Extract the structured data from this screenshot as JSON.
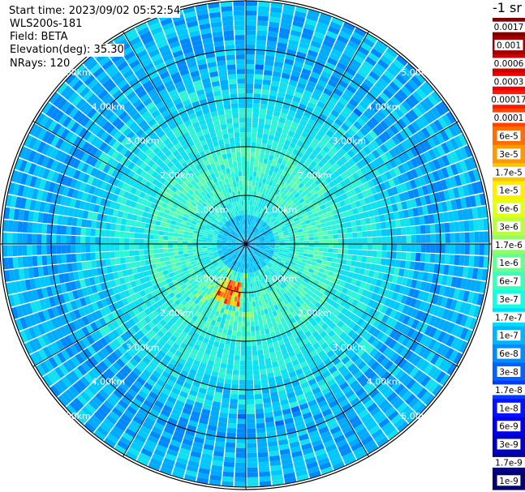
{
  "info": {
    "start_time": "Start time: 2023/09/02 05:52:54",
    "instrument": "WLS200s-181",
    "field": "Field: BETA",
    "elevation": "Elevation(deg): 35.30",
    "nrays": "NRays: 120"
  },
  "colorbar": {
    "unit_label": "-1 sr",
    "ticks": [
      "0.0017",
      "0.001",
      "0.0006",
      "0.0003",
      "0.00017",
      "0.0001",
      "6e-5",
      "3e-5",
      "1.7e-5",
      "1e-5",
      "6e-6",
      "3e-6",
      "1.7e-6",
      "1e-6",
      "6e-7",
      "3e-7",
      "1.7e-7",
      "1e-7",
      "6e-8",
      "3e-8",
      "1.7e-8",
      "1e-8",
      "6e-9",
      "3e-9",
      "1.7e-9",
      "1e-9"
    ],
    "colors": [
      "#7f0000",
      "#a50000",
      "#cc0000",
      "#f00000",
      "#ff1a00",
      "#ff4400",
      "#ff6e00",
      "#ff9900",
      "#ffc300",
      "#ffee00",
      "#e3ff14",
      "#b9ff3e",
      "#8fff68",
      "#65ff92",
      "#3bffbc",
      "#12ffe6",
      "#00ddff",
      "#00b4ff",
      "#008cff",
      "#0063ff",
      "#003bff",
      "#0012ff",
      "#0000e8",
      "#0000c0",
      "#000098",
      "#000070"
    ]
  },
  "chart_data": {
    "type": "heatmap",
    "projection": "polar (PPI)",
    "field": "BETA",
    "n_rays": 120,
    "range_rings_km": [
      1.0,
      2.0,
      3.0,
      4.0,
      5.0
    ],
    "range_labels": [
      "1.00km",
      "2.00km",
      "3.00km",
      "4.00km",
      "5.00km"
    ],
    "max_range_km": 5.05,
    "azimuth_lines_deg": [
      0,
      30,
      60,
      90,
      120,
      150,
      180,
      210,
      240,
      270,
      300,
      330
    ],
    "value_zones": [
      {
        "range_km": [
          0.0,
          0.6
        ],
        "level": "6e-8 to 1.7e-7"
      },
      {
        "range_km": [
          0.6,
          2.0
        ],
        "level": "1.7e-7 to 6e-7"
      },
      {
        "range_km": [
          2.0,
          3.5
        ],
        "level": "1e-7 to 3e-7"
      },
      {
        "range_km": [
          3.5,
          5.05
        ],
        "level": "1e-8 to 1e-7"
      }
    ],
    "hotspot": {
      "azimuth_deg": 200,
      "range_km": [
        0.8,
        1.3
      ],
      "level": "1e-5 to 3e-5"
    },
    "grid": true
  }
}
